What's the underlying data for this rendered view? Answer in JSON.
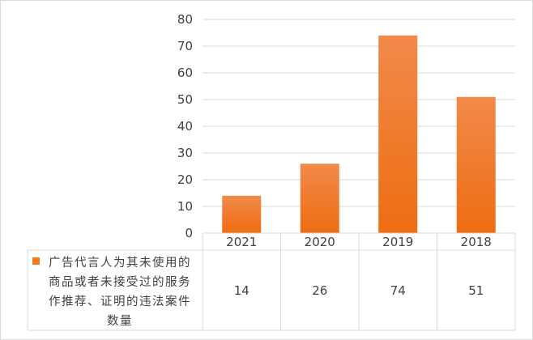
{
  "chart_data": {
    "type": "bar",
    "categories": [
      "2021",
      "2020",
      "2019",
      "2018"
    ],
    "series": [
      {
        "name": "广告代言人为其未使用的商品或者未接受过的服务作推荐、证明的违法案件数量",
        "values": [
          14,
          26,
          74,
          51
        ],
        "color": "#f07a1e"
      }
    ],
    "ylim": [
      0,
      80
    ],
    "yticks": [
      0,
      10,
      20,
      30,
      40,
      50,
      60,
      70,
      80
    ],
    "grid": true,
    "data_table": true,
    "legend_lines": [
      "广告代言人为其未使用的",
      "商品或者未接受过的服务",
      "作推荐、证明的违法案件",
      "数量"
    ]
  }
}
